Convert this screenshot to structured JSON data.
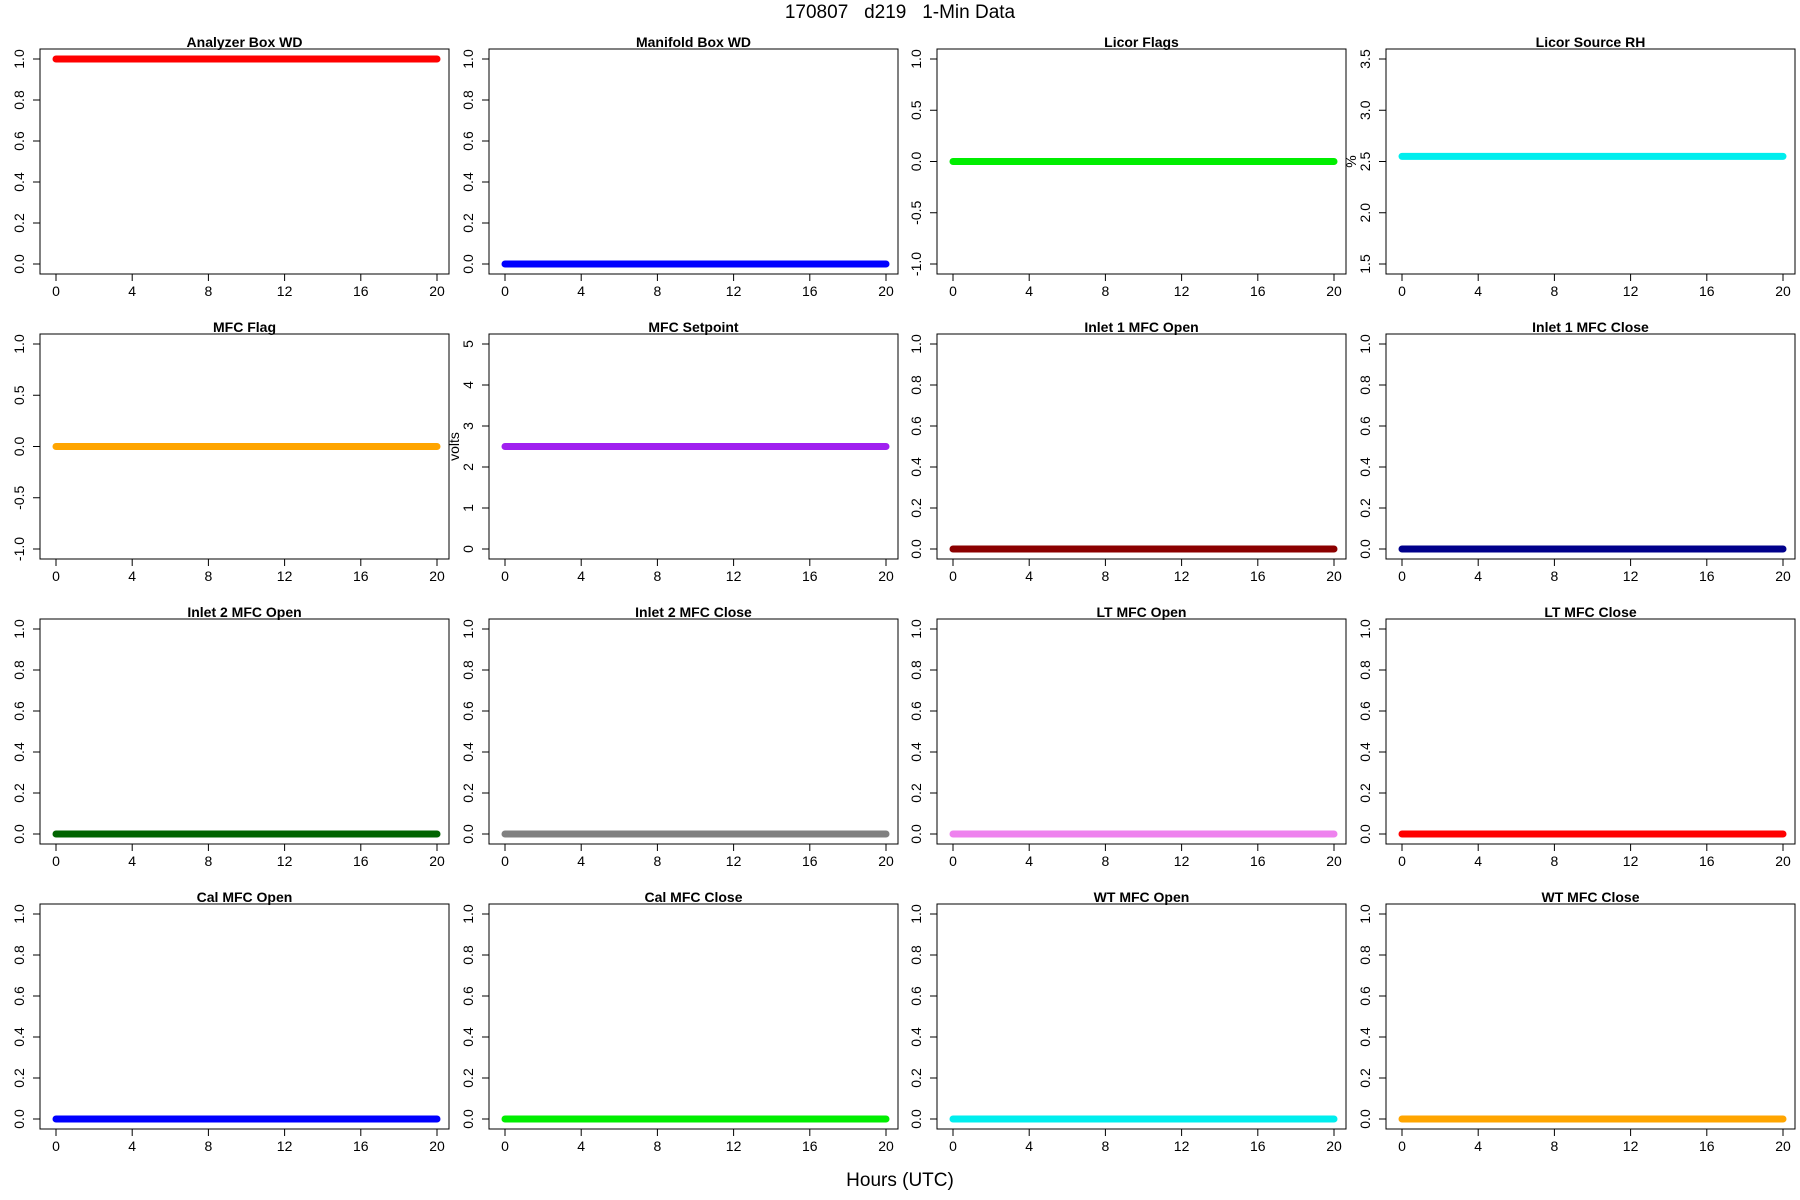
{
  "title": "170807   d219   1-Min Data",
  "xlabel": "Hours (UTC)",
  "chart_data": [
    {
      "type": "line",
      "title": "Analyzer Box WD",
      "ylabel": "",
      "color": "#ff0000",
      "xlim": [
        0,
        20
      ],
      "xticks": [
        "0",
        "4",
        "8",
        "12",
        "16",
        "20"
      ],
      "ylim": [
        0,
        1
      ],
      "yticks": [
        "0.0",
        "0.2",
        "0.4",
        "0.6",
        "0.8",
        "1.0"
      ],
      "series": [
        {
          "x": [
            0,
            20
          ],
          "y": [
            1,
            1
          ]
        }
      ]
    },
    {
      "type": "line",
      "title": "Manifold Box WD",
      "ylabel": "",
      "color": "#0000ff",
      "xlim": [
        0,
        20
      ],
      "xticks": [
        "0",
        "4",
        "8",
        "12",
        "16",
        "20"
      ],
      "ylim": [
        0,
        1
      ],
      "yticks": [
        "0.0",
        "0.2",
        "0.4",
        "0.6",
        "0.8",
        "1.0"
      ],
      "series": [
        {
          "x": [
            0,
            20
          ],
          "y": [
            0,
            0
          ]
        }
      ]
    },
    {
      "type": "line",
      "title": "Licor Flags",
      "ylabel": "",
      "color": "#00ee00",
      "xlim": [
        0,
        20
      ],
      "xticks": [
        "0",
        "4",
        "8",
        "12",
        "16",
        "20"
      ],
      "ylim": [
        -1,
        1
      ],
      "yticks": [
        "-1.0",
        "-0.5",
        "0.0",
        "0.5",
        "1.0"
      ],
      "series": [
        {
          "x": [
            0,
            20
          ],
          "y": [
            0,
            0
          ]
        }
      ]
    },
    {
      "type": "line",
      "title": "Licor Source RH",
      "ylabel": "%",
      "color": "#00eeee",
      "xlim": [
        0,
        20
      ],
      "xticks": [
        "0",
        "4",
        "8",
        "12",
        "16",
        "20"
      ],
      "ylim": [
        1.5,
        3.5
      ],
      "yticks": [
        "1.5",
        "2.0",
        "2.5",
        "3.0",
        "3.5"
      ],
      "series": [
        {
          "x": [
            0,
            20
          ],
          "y": [
            2.55,
            2.55
          ]
        }
      ]
    },
    {
      "type": "line",
      "title": "MFC Flag",
      "ylabel": "",
      "color": "#ffa500",
      "xlim": [
        0,
        20
      ],
      "xticks": [
        "0",
        "4",
        "8",
        "12",
        "16",
        "20"
      ],
      "ylim": [
        -1,
        1
      ],
      "yticks": [
        "-1.0",
        "-0.5",
        "0.0",
        "0.5",
        "1.0"
      ],
      "series": [
        {
          "x": [
            0,
            20
          ],
          "y": [
            0,
            0
          ]
        }
      ]
    },
    {
      "type": "line",
      "title": "MFC Setpoint",
      "ylabel": "volts",
      "color": "#a020f0",
      "xlim": [
        0,
        20
      ],
      "xticks": [
        "0",
        "4",
        "8",
        "12",
        "16",
        "20"
      ],
      "ylim": [
        0,
        5
      ],
      "yticks": [
        "0",
        "1",
        "2",
        "3",
        "4",
        "5"
      ],
      "series": [
        {
          "x": [
            0,
            20
          ],
          "y": [
            2.5,
            2.5
          ]
        }
      ]
    },
    {
      "type": "line",
      "title": "Inlet 1 MFC Open",
      "ylabel": "",
      "color": "#8b0000",
      "xlim": [
        0,
        20
      ],
      "xticks": [
        "0",
        "4",
        "8",
        "12",
        "16",
        "20"
      ],
      "ylim": [
        0,
        1
      ],
      "yticks": [
        "0.0",
        "0.2",
        "0.4",
        "0.6",
        "0.8",
        "1.0"
      ],
      "series": [
        {
          "x": [
            0,
            20
          ],
          "y": [
            0,
            0
          ]
        }
      ]
    },
    {
      "type": "line",
      "title": "Inlet 1 MFC Close",
      "ylabel": "",
      "color": "#00008b",
      "xlim": [
        0,
        20
      ],
      "xticks": [
        "0",
        "4",
        "8",
        "12",
        "16",
        "20"
      ],
      "ylim": [
        0,
        1
      ],
      "yticks": [
        "0.0",
        "0.2",
        "0.4",
        "0.6",
        "0.8",
        "1.0"
      ],
      "series": [
        {
          "x": [
            0,
            20
          ],
          "y": [
            0,
            0
          ]
        }
      ]
    },
    {
      "type": "line",
      "title": "Inlet 2 MFC Open",
      "ylabel": "",
      "color": "#006400",
      "xlim": [
        0,
        20
      ],
      "xticks": [
        "0",
        "4",
        "8",
        "12",
        "16",
        "20"
      ],
      "ylim": [
        0,
        1
      ],
      "yticks": [
        "0.0",
        "0.2",
        "0.4",
        "0.6",
        "0.8",
        "1.0"
      ],
      "series": [
        {
          "x": [
            0,
            20
          ],
          "y": [
            0,
            0
          ]
        }
      ]
    },
    {
      "type": "line",
      "title": "Inlet 2 MFC Close",
      "ylabel": "",
      "color": "#808080",
      "xlim": [
        0,
        20
      ],
      "xticks": [
        "0",
        "4",
        "8",
        "12",
        "16",
        "20"
      ],
      "ylim": [
        0,
        1
      ],
      "yticks": [
        "0.0",
        "0.2",
        "0.4",
        "0.6",
        "0.8",
        "1.0"
      ],
      "series": [
        {
          "x": [
            0,
            20
          ],
          "y": [
            0,
            0
          ]
        }
      ]
    },
    {
      "type": "line",
      "title": "LT MFC Open",
      "ylabel": "",
      "color": "#ee82ee",
      "xlim": [
        0,
        20
      ],
      "xticks": [
        "0",
        "4",
        "8",
        "12",
        "16",
        "20"
      ],
      "ylim": [
        0,
        1
      ],
      "yticks": [
        "0.0",
        "0.2",
        "0.4",
        "0.6",
        "0.8",
        "1.0"
      ],
      "series": [
        {
          "x": [
            0,
            20
          ],
          "y": [
            0,
            0
          ]
        }
      ]
    },
    {
      "type": "line",
      "title": "LT MFC Close",
      "ylabel": "",
      "color": "#ff0000",
      "xlim": [
        0,
        20
      ],
      "xticks": [
        "0",
        "4",
        "8",
        "12",
        "16",
        "20"
      ],
      "ylim": [
        0,
        1
      ],
      "yticks": [
        "0.0",
        "0.2",
        "0.4",
        "0.6",
        "0.8",
        "1.0"
      ],
      "series": [
        {
          "x": [
            0,
            20
          ],
          "y": [
            0,
            0
          ]
        }
      ]
    },
    {
      "type": "line",
      "title": "Cal MFC Open",
      "ylabel": "",
      "color": "#0000ff",
      "xlim": [
        0,
        20
      ],
      "xticks": [
        "0",
        "4",
        "8",
        "12",
        "16",
        "20"
      ],
      "ylim": [
        0,
        1
      ],
      "yticks": [
        "0.0",
        "0.2",
        "0.4",
        "0.6",
        "0.8",
        "1.0"
      ],
      "series": [
        {
          "x": [
            0,
            20
          ],
          "y": [
            0,
            0
          ]
        }
      ]
    },
    {
      "type": "line",
      "title": "Cal MFC Close",
      "ylabel": "",
      "color": "#00ee00",
      "xlim": [
        0,
        20
      ],
      "xticks": [
        "0",
        "4",
        "8",
        "12",
        "16",
        "20"
      ],
      "ylim": [
        0,
        1
      ],
      "yticks": [
        "0.0",
        "0.2",
        "0.4",
        "0.6",
        "0.8",
        "1.0"
      ],
      "series": [
        {
          "x": [
            0,
            20
          ],
          "y": [
            0,
            0
          ]
        }
      ]
    },
    {
      "type": "line",
      "title": "WT MFC Open",
      "ylabel": "",
      "color": "#00eeee",
      "xlim": [
        0,
        20
      ],
      "xticks": [
        "0",
        "4",
        "8",
        "12",
        "16",
        "20"
      ],
      "ylim": [
        0,
        1
      ],
      "yticks": [
        "0.0",
        "0.2",
        "0.4",
        "0.6",
        "0.8",
        "1.0"
      ],
      "series": [
        {
          "x": [
            0,
            20
          ],
          "y": [
            0,
            0
          ]
        }
      ]
    },
    {
      "type": "line",
      "title": "WT MFC Close",
      "ylabel": "",
      "color": "#ffa500",
      "xlim": [
        0,
        20
      ],
      "xticks": [
        "0",
        "4",
        "8",
        "12",
        "16",
        "20"
      ],
      "ylim": [
        0,
        1
      ],
      "yticks": [
        "0.0",
        "0.2",
        "0.4",
        "0.6",
        "0.8",
        "1.0"
      ],
      "series": [
        {
          "x": [
            0,
            20
          ],
          "y": [
            0,
            0
          ]
        }
      ]
    }
  ]
}
